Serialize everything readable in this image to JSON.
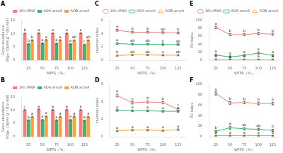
{
  "chart_data": [
    {
      "type": "bar",
      "title": "A",
      "xlabel": "WFPS（%）",
      "ylabel": "Gene abundance\n(log₁₀ copies g⁻¹ dry soil)",
      "categories": [
        "25",
        "50",
        "75",
        "100",
        "125"
      ],
      "series": [
        {
          "name": "16s rRNA",
          "color": "#f0807a",
          "values": [
            10.05,
            10.2,
            10.15,
            10.1,
            10.2
          ],
          "errors": [
            0.18,
            0.14,
            0.14,
            0.18,
            0.14
          ],
          "annotations": [
            "b",
            "a",
            "a",
            "a",
            "a"
          ]
        },
        {
          "name": "AOA amoA",
          "color": "#3cb371",
          "values": [
            6.1,
            6.35,
            6.3,
            6.1,
            5.85
          ],
          "errors": [
            0.18,
            0.18,
            0.18,
            0.18,
            0.18
          ],
          "annotations": [
            "b",
            "a",
            "a",
            "a",
            "c"
          ]
        },
        {
          "name": "AOB amoA",
          "color": "#ffa040",
          "values": [
            7.5,
            7.6,
            7.55,
            7.5,
            7.5
          ],
          "errors": [
            0.18,
            0.18,
            0.18,
            0.18,
            0.18
          ],
          "annotations": [
            "b",
            "a",
            "a",
            "ab",
            "ab"
          ]
        }
      ],
      "ylim": [
        0,
        15
      ],
      "yticks": [
        0,
        5,
        10,
        15
      ],
      "grid": false,
      "legend": "upper right"
    },
    {
      "type": "line",
      "title": "C",
      "xlabel": "WFPS（%）",
      "ylabel": "shannon index",
      "categories": [
        "25",
        "50",
        "75",
        "100",
        "125"
      ],
      "series": [
        {
          "name": "16s rRNA",
          "color": "#f0807a",
          "marker": "circle",
          "values": [
            4.5,
            4.2,
            4.2,
            4.15,
            4.1
          ],
          "errors": [
            0.12,
            0.1,
            0.1,
            0.1,
            0.1
          ],
          "annotations": [
            "a",
            "b",
            "b",
            "ab",
            "b"
          ]
        },
        {
          "name": "AOA amoA",
          "color": "#3cb371",
          "marker": "square",
          "values": [
            2.5,
            2.4,
            2.4,
            2.35,
            2.35
          ],
          "errors": [
            0.1,
            0.08,
            0.08,
            0.08,
            0.08
          ],
          "annotations": [
            "a",
            "ab",
            "ab",
            "b",
            "ab"
          ]
        },
        {
          "name": "AOB amoA",
          "color": "#ffa040",
          "marker": "triangle",
          "values": [
            0.7,
            0.8,
            0.8,
            0.75,
            0.75
          ],
          "errors": [
            0.08,
            0.08,
            0.08,
            0.08,
            0.08
          ],
          "annotations": [
            "b",
            "ab",
            "ab",
            "a",
            "ab"
          ]
        }
      ],
      "ylim": [
        0,
        6
      ],
      "yticks": [
        0,
        2,
        4,
        6
      ],
      "grid": false,
      "legend": "upper right"
    },
    {
      "type": "line",
      "title": "E",
      "xlabel": "WFPS（%）",
      "ylabel": "PD index",
      "categories": [
        "25",
        "50",
        "75",
        "100",
        "125"
      ],
      "series": [
        {
          "name": "16s rRNA",
          "color": "#f0807a",
          "marker": "circle",
          "values": [
            82,
            64,
            64,
            67,
            65
          ],
          "errors": [
            3,
            2.5,
            2.5,
            2.5,
            2.5
          ],
          "annotations": [
            "a",
            "b",
            "b",
            "b",
            "b"
          ]
        },
        {
          "name": "AOA amoA",
          "color": "#3cb371",
          "marker": "square",
          "values": [
            13,
            8,
            12,
            18,
            12
          ],
          "errors": [
            2,
            2,
            2,
            3,
            2
          ],
          "annotations": [
            "a",
            "a",
            "a",
            "a",
            "a"
          ]
        },
        {
          "name": "AOB amoA",
          "color": "#ffa040",
          "marker": "triangle",
          "values": [
            2,
            2,
            2,
            2,
            2
          ],
          "errors": [
            0.5,
            0.5,
            0.5,
            0.5,
            0.5
          ],
          "annotations": [
            "a",
            "a",
            "a",
            "a",
            "a"
          ]
        }
      ],
      "ylim": [
        0,
        100
      ],
      "yticks": [
        0,
        20,
        40,
        60,
        80,
        100
      ],
      "grid": false,
      "legend": "upper right"
    },
    {
      "type": "bar",
      "title": "B",
      "xlabel": "WFPS（%）",
      "ylabel": "Gene abundance\n(log₁₀ copies g⁻¹ dry soil)",
      "categories": [
        "25",
        "50",
        "75",
        "100",
        "125"
      ],
      "series": [
        {
          "name": "16s rRNA",
          "color": "#f0807a",
          "values": [
            10.05,
            10.3,
            10.15,
            10.2,
            10.05
          ],
          "errors": [
            0.18,
            0.14,
            0.14,
            0.14,
            0.18
          ],
          "annotations": [
            "c",
            "a",
            "a",
            "a",
            "a"
          ]
        },
        {
          "name": "AOA amoA",
          "color": "#3cb371",
          "values": [
            6.2,
            6.3,
            6.2,
            6.3,
            6.1
          ],
          "errors": [
            0.18,
            0.18,
            0.18,
            0.18,
            0.18
          ],
          "annotations": [
            "a",
            "a",
            "a",
            "a",
            "a"
          ]
        },
        {
          "name": "AOB amoA",
          "color": "#ffa040",
          "values": [
            7.5,
            7.65,
            7.55,
            7.6,
            7.5
          ],
          "errors": [
            0.18,
            0.18,
            0.18,
            0.18,
            0.18
          ],
          "annotations": [
            "a",
            "a",
            "a",
            "a",
            "a"
          ]
        }
      ],
      "ylim": [
        0,
        15
      ],
      "yticks": [
        0,
        5,
        10,
        15
      ],
      "grid": false,
      "legend": "upper right"
    },
    {
      "type": "line",
      "title": "D",
      "xlabel": "WFPS（%）",
      "ylabel": "shannon index",
      "categories": [
        "25",
        "50",
        "75",
        "100",
        "125"
      ],
      "series": [
        {
          "name": "16s rRNA",
          "color": "#f0807a",
          "marker": "circle",
          "values": [
            4.7,
            3.85,
            3.95,
            3.9,
            3.1
          ],
          "errors": [
            0.18,
            0.12,
            0.12,
            0.12,
            0.18
          ],
          "annotations": [
            "a",
            "b",
            "b",
            "b",
            "c"
          ]
        },
        {
          "name": "AOA amoA",
          "color": "#3cb371",
          "marker": "square",
          "values": [
            3.0,
            2.95,
            2.95,
            2.9,
            2.9
          ],
          "errors": [
            0.08,
            0.08,
            0.08,
            0.08,
            0.08
          ],
          "annotations": [
            "a",
            "a",
            "a",
            "a",
            "a"
          ]
        },
        {
          "name": "AOB amoA",
          "color": "#ffa040",
          "marker": "triangle",
          "values": [
            0.65,
            0.75,
            0.75,
            0.7,
            0.8
          ],
          "errors": [
            0.08,
            0.08,
            0.08,
            0.08,
            0.08
          ],
          "annotations": [
            "a",
            "a",
            "a",
            "a",
            "a"
          ]
        }
      ],
      "ylim": [
        0,
        6
      ],
      "yticks": [
        0,
        2,
        4,
        6
      ],
      "grid": false
    },
    {
      "type": "line",
      "title": "F",
      "xlabel": "WFPS（%）",
      "ylabel": "PD index",
      "categories": [
        "25",
        "50",
        "75",
        "100",
        "125"
      ],
      "series": [
        {
          "name": "16s rRNA",
          "color": "#f0807a",
          "marker": "circle",
          "values": [
            82,
            64,
            65,
            63,
            63
          ],
          "errors": [
            3,
            2.5,
            2.5,
            2.5,
            2.5
          ],
          "annotations": [
            "a",
            "b",
            "b",
            "b",
            "b"
          ]
        },
        {
          "name": "AOA amoA",
          "color": "#3cb371",
          "marker": "square",
          "values": [
            10,
            17,
            15,
            14,
            12
          ],
          "errors": [
            2,
            3,
            2,
            2,
            2
          ],
          "annotations": [
            "b",
            "a",
            "ab",
            "ab",
            "b"
          ]
        },
        {
          "name": "AOB amoA",
          "color": "#ffa040",
          "marker": "triangle",
          "values": [
            2,
            2,
            2,
            2,
            2
          ],
          "errors": [
            0.5,
            0.5,
            0.5,
            0.5,
            0.5
          ],
          "annotations": [
            "a",
            "a",
            "a",
            "a",
            "a"
          ]
        }
      ],
      "ylim": [
        0,
        100
      ],
      "yticks": [
        0,
        20,
        40,
        60,
        80,
        100
      ],
      "grid": false
    }
  ]
}
